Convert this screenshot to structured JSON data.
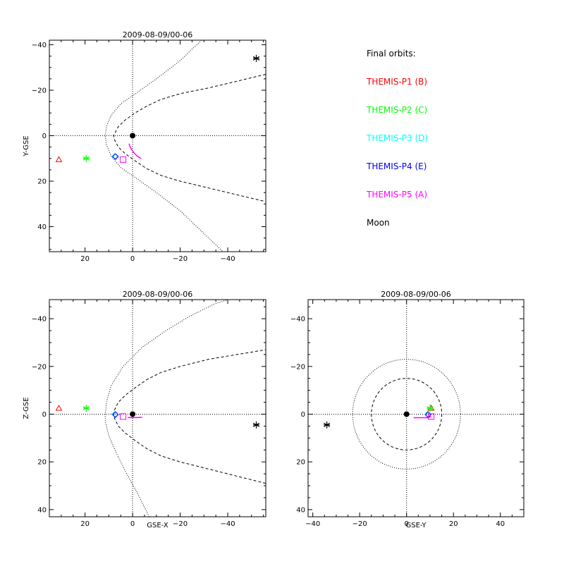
{
  "chart_data": [
    {
      "type": "scatter",
      "title": "2009-08-09/00-06",
      "xlabel": "",
      "ylabel": "Y-GSE",
      "xlim": [
        35,
        -56
      ],
      "ylim": [
        -42,
        51
      ],
      "x_ticks": [
        20,
        0,
        -20,
        -40
      ],
      "y_ticks": [
        -40,
        -20,
        0,
        20,
        40
      ],
      "x_ticklabels": [
        "20",
        "0",
        "−20",
        "−40"
      ],
      "y_ticklabels": [
        "−40",
        "−20",
        "0",
        "20",
        "40"
      ],
      "earth": [
        0,
        0
      ],
      "orbit_p5": [
        [
          1.5,
          3.5
        ],
        [
          0.8,
          5.5
        ],
        [
          -0.5,
          7.5
        ],
        [
          -2.0,
          9.0
        ],
        [
          -3.5,
          10.0
        ]
      ],
      "markers": [
        {
          "probe": "P1",
          "symbol": "triangle",
          "x": 31,
          "y": 10.5
        },
        {
          "probe": "P2",
          "symbol": "asterisk",
          "x": 19.5,
          "y": 10
        },
        {
          "probe": "P3",
          "symbol": "diamond",
          "x": 7.5,
          "y": 9
        },
        {
          "probe": "P4",
          "symbol": "diamond",
          "x": 7.2,
          "y": 9.2
        },
        {
          "probe": "P5",
          "symbol": "square",
          "x": 4,
          "y": 10.5
        },
        {
          "probe": "Moon",
          "symbol": "asterisk",
          "x": -52,
          "y": -34
        }
      ],
      "bow_shock": [
        [
          -29,
          -42
        ],
        [
          -20,
          -33
        ],
        [
          -10,
          -25
        ],
        [
          -2,
          -19
        ],
        [
          5,
          -14
        ],
        [
          9,
          -9
        ],
        [
          11,
          -4
        ],
        [
          11.5,
          0
        ],
        [
          11,
          4
        ],
        [
          9,
          9
        ],
        [
          5,
          14
        ],
        [
          -2,
          19
        ],
        [
          -10,
          25
        ],
        [
          -20,
          33
        ],
        [
          -29,
          42
        ],
        [
          -38,
          51
        ]
      ],
      "magnetopause": [
        [
          -56,
          -27
        ],
        [
          -44,
          -24
        ],
        [
          -32,
          -21
        ],
        [
          -20,
          -18.5
        ],
        [
          -12,
          -16
        ],
        [
          -6,
          -13
        ],
        [
          -1,
          -10
        ],
        [
          3,
          -7
        ],
        [
          6,
          -4
        ],
        [
          7.5,
          -1
        ],
        [
          8,
          0
        ],
        [
          7.5,
          2
        ],
        [
          6,
          5
        ],
        [
          3,
          8
        ],
        [
          -1,
          11
        ],
        [
          -6,
          14.5
        ],
        [
          -12,
          17.5
        ],
        [
          -20,
          20
        ],
        [
          -32,
          23
        ],
        [
          -44,
          26
        ],
        [
          -56,
          29
        ]
      ]
    },
    {
      "type": "scatter",
      "title": "2009-08-09/00-06",
      "xlabel": "GSE-X",
      "ylabel": "Z-GSE",
      "xlim": [
        35,
        -56
      ],
      "ylim": [
        -48,
        43
      ],
      "x_ticks": [
        20,
        0,
        -20,
        -40
      ],
      "y_ticks": [
        -40,
        -20,
        0,
        20,
        40
      ],
      "x_ticklabels": [
        "20",
        "0",
        "−20",
        "−40"
      ],
      "y_ticklabels": [
        "−40",
        "−20",
        "0",
        "20",
        "40"
      ],
      "earth": [
        0,
        0
      ],
      "orbit_p5": [
        [
          -4,
          1.3
        ],
        [
          -2,
          1.4
        ],
        [
          0,
          1.5
        ],
        [
          2,
          1.4
        ]
      ],
      "markers": [
        {
          "probe": "P1",
          "symbol": "triangle",
          "x": 31,
          "y": -2.5
        },
        {
          "probe": "P2",
          "symbol": "asterisk",
          "x": 19.5,
          "y": -2.5
        },
        {
          "probe": "P3",
          "symbol": "diamond",
          "x": 7.5,
          "y": 0
        },
        {
          "probe": "P4",
          "symbol": "diamond",
          "x": 7.2,
          "y": 0.2
        },
        {
          "probe": "P5",
          "symbol": "square",
          "x": 4,
          "y": 1
        },
        {
          "probe": "Moon",
          "symbol": "asterisk",
          "x": -52,
          "y": 4.5
        }
      ],
      "bow_shock": [
        [
          -7,
          43
        ],
        [
          -2,
          33
        ],
        [
          3,
          24
        ],
        [
          7,
          16
        ],
        [
          10,
          9
        ],
        [
          11.5,
          3
        ],
        [
          11.5,
          0
        ],
        [
          11,
          -5
        ],
        [
          9,
          -12
        ],
        [
          4,
          -20
        ],
        [
          -4,
          -28
        ],
        [
          -14,
          -35
        ],
        [
          -24,
          -41
        ],
        [
          -34,
          -46
        ],
        [
          -40,
          -48
        ]
      ],
      "magnetopause": [
        [
          -56,
          29
        ],
        [
          -44,
          26
        ],
        [
          -32,
          23
        ],
        [
          -20,
          20
        ],
        [
          -12,
          17.5
        ],
        [
          -6,
          14.5
        ],
        [
          -1,
          11
        ],
        [
          3,
          8
        ],
        [
          6,
          5
        ],
        [
          7.5,
          2
        ],
        [
          8,
          0
        ],
        [
          7.5,
          -2
        ],
        [
          6,
          -5
        ],
        [
          3,
          -8
        ],
        [
          -1,
          -11
        ],
        [
          -6,
          -14.5
        ],
        [
          -12,
          -17.5
        ],
        [
          -20,
          -20
        ],
        [
          -32,
          -23
        ],
        [
          -44,
          -25
        ],
        [
          -56,
          -27
        ]
      ]
    },
    {
      "type": "scatter",
      "title": "2009-08-09/00-06",
      "xlabel": "GSE-Y",
      "ylabel": "",
      "xlim": [
        -42,
        50
      ],
      "ylim": [
        -48,
        43
      ],
      "x_ticks": [
        -40,
        -20,
        0,
        20,
        40
      ],
      "y_ticks": [
        -40,
        -20,
        0,
        20,
        40
      ],
      "x_ticklabels": [
        "−40",
        "−20",
        "0",
        "20",
        "40"
      ],
      "y_ticklabels": [
        "−40",
        "−20",
        "0",
        "20",
        "40"
      ],
      "earth": [
        0,
        0
      ],
      "orbit_p5": [
        [
          3,
          1.5
        ],
        [
          6,
          1.5
        ],
        [
          9,
          1.5
        ],
        [
          10.5,
          1
        ]
      ],
      "markers": [
        {
          "probe": "P1",
          "symbol": "triangle",
          "x": 10.5,
          "y": -2.5
        },
        {
          "probe": "P2",
          "symbol": "asterisk",
          "x": 10,
          "y": -2.5
        },
        {
          "probe": "P3",
          "symbol": "diamond",
          "x": 9,
          "y": 0
        },
        {
          "probe": "P4",
          "symbol": "diamond",
          "x": 9.2,
          "y": 0.2
        },
        {
          "probe": "P5",
          "symbol": "square",
          "x": 10.5,
          "y": 1
        },
        {
          "probe": "Moon",
          "symbol": "asterisk",
          "x": -34,
          "y": 4.5
        }
      ],
      "bow_shock_radius": 23,
      "magnetopause_radius": 15
    }
  ],
  "legend": {
    "title": "Final orbits:",
    "entries": [
      {
        "key": "P1",
        "label": "THEMIS-P1 (B)",
        "color": "#ff0000"
      },
      {
        "key": "P2",
        "label": "THEMIS-P2 (C)",
        "color": "#00ff00"
      },
      {
        "key": "P3",
        "label": "THEMIS-P3 (D)",
        "color": "#00ffff"
      },
      {
        "key": "P4",
        "label": "THEMIS-P4 (E)",
        "color": "#0000ff"
      },
      {
        "key": "P5",
        "label": "THEMIS-P5 (A)",
        "color": "#ff00ff"
      },
      {
        "key": "Moon",
        "label": "Moon",
        "color": "#000000"
      }
    ]
  }
}
